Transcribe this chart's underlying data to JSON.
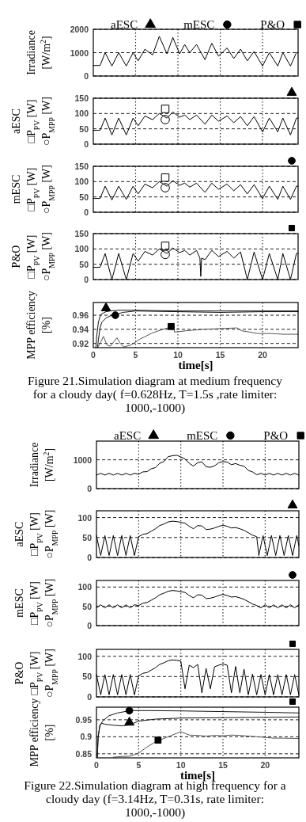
{
  "chart_data": [
    {
      "type": "line",
      "ylabel": "Irradiance\n[W/m$^{2}$]",
      "xlim": [
        0,
        24.2
      ],
      "xticks": [
        0,
        5,
        10,
        15,
        20
      ],
      "ylim": [
        0,
        2000
      ],
      "yticks": [
        0,
        1000,
        2000
      ],
      "grid": true,
      "tick_labels": "y",
      "series": [
        {
          "color": "#000000",
          "x": [
            0,
            0.8,
            1.4,
            2.2,
            3.0,
            3.9,
            4.7,
            5.3,
            6.1,
            7.0,
            7.8,
            8.7,
            9.4,
            10.2,
            10.8,
            11.4,
            12.2,
            13.2,
            14.0,
            14.8,
            15.8,
            16.6,
            17.4,
            18.2,
            19.0,
            20.0,
            20.8,
            21.8,
            22.4,
            23.3,
            24.0,
            24.2
          ],
          "values": [
            450,
            450,
            1000,
            430,
            1000,
            430,
            1000,
            650,
            1150,
            900,
            1700,
            950,
            1650,
            950,
            1350,
            1000,
            1350,
            700,
            1400,
            850,
            1200,
            750,
            1150,
            650,
            1050,
            430,
            1000,
            430,
            1000,
            430,
            1000,
            1000
          ]
        }
      ]
    },
    {
      "type": "line",
      "ylabel": "aESC\n□P$_{PV}$ [W]\n○P$_{MPP}$ [W]",
      "xlim": [
        0,
        24.2
      ],
      "xticks": [
        0,
        5,
        10,
        15,
        20
      ],
      "ylim": [
        0,
        150
      ],
      "yticks": [
        0,
        50,
        100,
        150
      ],
      "grid": true,
      "tick_labels": "y",
      "series": [
        {
          "color": "#000000",
          "x": [
            0,
            0.8,
            1.4,
            2.2,
            3.0,
            3.9,
            4.7,
            5.3,
            6.1,
            7.0,
            7.8,
            8.7,
            9.4,
            10.2,
            10.8,
            11.4,
            12.2,
            13.2,
            14.0,
            14.8,
            15.8,
            16.6,
            17.4,
            18.2,
            19.0,
            20.0,
            20.8,
            21.8,
            22.4,
            23.3,
            24.0,
            24.2
          ],
          "values": [
            45,
            45,
            85,
            30,
            85,
            30,
            85,
            60,
            92,
            80,
            100,
            85,
            105,
            88,
            95,
            80,
            95,
            65,
            95,
            75,
            92,
            70,
            90,
            60,
            90,
            40,
            85,
            40,
            85,
            30,
            85,
            85
          ]
        },
        {
          "type": "scatter",
          "marker": "square",
          "color": "#000000",
          "x": [
            8.5
          ],
          "values": [
            115
          ]
        },
        {
          "type": "scatter",
          "marker": "circle",
          "color": "#000000",
          "x": [
            8.5
          ],
          "values": [
            80
          ]
        }
      ]
    },
    {
      "type": "line",
      "ylabel": "mESC\n□P$_{PV}$ [W]\n○P$_{MPP}$ [W]",
      "xlim": [
        0,
        24.2
      ],
      "xticks": [
        0,
        5,
        10,
        15,
        20
      ],
      "ylim": [
        0,
        150
      ],
      "yticks": [
        0,
        50,
        100,
        150
      ],
      "grid": true,
      "tick_labels": "y",
      "series": [
        {
          "color": "#000000",
          "x": [
            0,
            0.8,
            1.4,
            2.2,
            3.0,
            3.9,
            4.7,
            5.3,
            6.1,
            7.0,
            7.8,
            8.7,
            9.4,
            10.2,
            10.8,
            11.4,
            12.2,
            13.2,
            14.0,
            14.8,
            15.8,
            16.6,
            17.4,
            18.2,
            19.0,
            20.0,
            20.8,
            21.8,
            22.4,
            23.3,
            24.0,
            24.2
          ],
          "values": [
            45,
            45,
            85,
            40,
            85,
            42,
            85,
            60,
            92,
            80,
            100,
            85,
            103,
            88,
            95,
            82,
            95,
            65,
            95,
            75,
            92,
            70,
            90,
            60,
            90,
            45,
            85,
            42,
            85,
            42,
            85,
            85
          ]
        },
        {
          "type": "scatter",
          "marker": "square",
          "color": "#000000",
          "x": [
            8.5
          ],
          "values": [
            113
          ]
        },
        {
          "type": "scatter",
          "marker": "circle",
          "color": "#000000",
          "x": [
            8.5
          ],
          "values": [
            80
          ]
        }
      ]
    },
    {
      "type": "line",
      "ylabel": "P&O\n□P$_{PV}$ [W]\n○P$_{MPP}$ [W]",
      "xlim": [
        0,
        24.2
      ],
      "xticks": [
        0,
        5,
        10,
        15,
        20
      ],
      "ylim": [
        0,
        150
      ],
      "yticks": [
        0,
        50,
        100,
        150
      ],
      "grid": true,
      "tick_labels": "y",
      "series": [
        {
          "color": "#000000",
          "x": [
            0,
            0.8,
            1.4,
            2.2,
            3.0,
            3.9,
            4.7,
            5.3,
            6.1,
            7.0,
            7.8,
            8.7,
            9.4,
            10.2,
            10.8,
            11.4,
            12.2,
            12.6,
            12.7,
            12.8,
            13.2,
            14.0,
            14.8,
            15.8,
            16.6,
            17.4,
            18.2,
            19.0,
            20.0,
            20.8,
            21.8,
            22.4,
            23.3,
            24.0,
            24.2
          ],
          "values": [
            40,
            40,
            85,
            0,
            85,
            0,
            85,
            60,
            92,
            80,
            100,
            85,
            103,
            88,
            95,
            80,
            95,
            70,
            10,
            70,
            65,
            95,
            75,
            92,
            70,
            90,
            0,
            90,
            0,
            85,
            0,
            85,
            0,
            85,
            85
          ]
        },
        {
          "type": "scatter",
          "marker": "square",
          "color": "#000000",
          "x": [
            8.5
          ],
          "values": [
            110
          ]
        },
        {
          "type": "scatter",
          "marker": "circle",
          "color": "#000000",
          "x": [
            8.5
          ],
          "values": [
            82
          ]
        }
      ]
    },
    {
      "type": "line",
      "ylabel": "MPP efficiency\n[%]",
      "xlabel": "time[s]",
      "xlim": [
        0,
        24.2
      ],
      "xticks": [
        0,
        5,
        10,
        15,
        20
      ],
      "ylim": [
        0.914,
        0.978
      ],
      "yticks": [
        0.92,
        0.94,
        0.96
      ],
      "grid": true,
      "legend": "top",
      "annotations": [
        "Figure 21.Simulation diagram at medium frequency for a cloudy day( f=0.628Hz, T=1.5s ,rate limiter: 1000,-1000)"
      ],
      "series": [
        {
          "color": "#111111",
          "x": [
            0.3,
            0.4,
            0.6,
            0.8,
            1.0,
            1.5,
            2.0,
            3.0,
            5,
            10,
            15,
            20,
            24.2
          ],
          "values": [
            0.914,
            0.93,
            0.95,
            0.958,
            0.962,
            0.965,
            0.966,
            0.967,
            0.967,
            0.966,
            0.966,
            0.966,
            0.966
          ]
        },
        {
          "color": "#111111",
          "x": [
            0.5,
            0.6,
            0.8,
            1.0,
            1.5,
            2.0,
            2.6,
            3.5,
            5,
            10,
            15,
            20,
            24.2
          ],
          "values": [
            0.914,
            0.925,
            0.942,
            0.95,
            0.956,
            0.959,
            0.961,
            0.964,
            0.966,
            0.965,
            0.964,
            0.965,
            0.965
          ]
        },
        {
          "color": "#555555",
          "x": [
            0.5,
            0.8,
            1.2,
            1.6,
            2.0,
            2.4,
            2.8,
            3.2,
            3.6,
            4.5,
            5.5,
            7,
            8.5,
            9.5,
            9.6,
            11,
            12,
            13,
            15,
            17,
            17.5,
            18.5,
            19.5,
            21,
            22.5,
            24.2
          ],
          "values": [
            0.914,
            0.92,
            0.93,
            0.918,
            0.916,
            0.922,
            0.928,
            0.92,
            0.915,
            0.918,
            0.926,
            0.935,
            0.941,
            0.944,
            0.936,
            0.938,
            0.939,
            0.94,
            0.941,
            0.942,
            0.938,
            0.936,
            0.934,
            0.934,
            0.933,
            0.933
          ]
        },
        {
          "type": "scatter",
          "name": "aESC",
          "marker": "triangle",
          "color": "#000000",
          "x": [
            1.5
          ],
          "values": [
            0.97
          ]
        },
        {
          "type": "scatter",
          "name": "mESC",
          "marker": "circle",
          "color": "#000000",
          "x": [
            2.6
          ],
          "values": [
            0.96
          ]
        },
        {
          "type": "scatter",
          "name": "P&O",
          "marker": "square",
          "color": "#000000",
          "x": [
            9.2
          ],
          "values": [
            0.944
          ]
        }
      ]
    },
    {
      "type": "line",
      "ylabel": "Irradiance\n[W/m$^{2}$]",
      "xlim": [
        0,
        24
      ],
      "xticks": [
        0,
        5,
        10,
        15,
        20
      ],
      "ylim": [
        0,
        1650
      ],
      "yticks": [
        0,
        1000
      ],
      "grid": true,
      "tick_labels": "y",
      "series": [
        {
          "color": "#000000",
          "x": [
            0,
            0.5,
            1,
            1.5,
            2,
            2.5,
            3,
            3.5,
            4,
            4.5,
            5,
            5.5,
            6,
            6.5,
            7,
            7.5,
            8,
            8.5,
            9,
            9.5,
            10,
            10.5,
            11,
            11.5,
            12,
            12.5,
            13,
            13.5,
            14,
            14.5,
            15,
            15.5,
            16,
            16.5,
            17,
            17.5,
            18,
            18.5,
            19,
            19.5,
            20,
            20.5,
            21,
            21.5,
            22,
            22.5,
            23,
            23.5,
            24
          ],
          "values": [
            470,
            530,
            470,
            530,
            470,
            530,
            470,
            530,
            470,
            530,
            500,
            580,
            590,
            690,
            730,
            880,
            940,
            1110,
            1140,
            1160,
            1100,
            1030,
            880,
            780,
            900,
            930,
            760,
            740,
            790,
            900,
            940,
            920,
            830,
            870,
            810,
            780,
            630,
            580,
            480,
            530,
            470,
            530,
            470,
            530,
            470,
            530,
            470,
            530,
            470
          ]
        }
      ]
    },
    {
      "type": "line",
      "ylabel": "aESC\n□P$_{PV}$ [W]\n○P$_{MPP}$ [W]",
      "xlim": [
        0,
        24
      ],
      "xticks": [
        0,
        5,
        10,
        15,
        20
      ],
      "ylim": [
        0,
        117
      ],
      "yticks": [
        0,
        50,
        100
      ],
      "grid": true,
      "tick_labels": "y",
      "series": [
        {
          "color": "#000000",
          "x": [
            0,
            0.5,
            1,
            1.5,
            2,
            2.5,
            3,
            3.5,
            4,
            4.5,
            5,
            5.5,
            6,
            6.5,
            7,
            7.5,
            8,
            8.5,
            9,
            9.5,
            10,
            10.5,
            11,
            11.5,
            12,
            12.5,
            13,
            13.5,
            14,
            14.5,
            15,
            15.5,
            16,
            16.5,
            17,
            17.5,
            18,
            18.5,
            19,
            19.25,
            19.75,
            20.25,
            20.75,
            21.25,
            21.75,
            22.25,
            22.75,
            23.25,
            23.75,
            24
          ],
          "values": [
            55,
            5,
            55,
            5,
            55,
            5,
            55,
            5,
            55,
            5,
            52,
            58,
            60,
            66,
            72,
            80,
            84,
            89,
            91,
            90,
            88,
            86,
            78,
            72,
            80,
            79,
            70,
            71,
            74,
            78,
            81,
            78,
            74,
            75,
            72,
            68,
            62,
            56,
            52,
            5,
            55,
            5,
            55,
            5,
            55,
            5,
            55,
            5,
            55,
            30
          ]
        }
      ]
    },
    {
      "type": "line",
      "ylabel": "mESC\n□P$_{PV}$ [W]\n○P$_{MPP}$ [W]",
      "xlim": [
        0,
        24
      ],
      "xticks": [
        0,
        5,
        10,
        15,
        20
      ],
      "ylim": [
        0,
        117
      ],
      "yticks": [
        0,
        50,
        100
      ],
      "grid": true,
      "tick_labels": "y",
      "series": [
        {
          "color": "#000000",
          "x": [
            0,
            0.5,
            1,
            1.5,
            2,
            2.5,
            3,
            3.5,
            4,
            4.5,
            5,
            5.5,
            6,
            6.5,
            7,
            7.5,
            8,
            8.5,
            9,
            9.5,
            10,
            10.5,
            11,
            11.5,
            12,
            12.5,
            13,
            13.5,
            14,
            14.5,
            15,
            15.5,
            16,
            16.5,
            17,
            17.5,
            18,
            18.5,
            19,
            19.5,
            20,
            20.5,
            21,
            21.5,
            22,
            22.5,
            23,
            23.5,
            24
          ],
          "values": [
            46,
            54,
            46,
            54,
            46,
            54,
            46,
            54,
            46,
            54,
            52,
            58,
            60,
            66,
            72,
            80,
            84,
            89,
            91,
            90,
            88,
            86,
            78,
            72,
            80,
            79,
            70,
            71,
            74,
            78,
            81,
            78,
            74,
            75,
            72,
            68,
            62,
            56,
            52,
            46,
            54,
            46,
            54,
            46,
            54,
            46,
            54,
            46,
            54
          ]
        }
      ]
    },
    {
      "type": "line",
      "ylabel": "P&O\n□P$_{PV}$ [W]\n○P$_{MPP}$ [W]",
      "xlim": [
        0,
        24
      ],
      "xticks": [
        0,
        5,
        10,
        15,
        20
      ],
      "ylim": [
        0,
        117
      ],
      "yticks": [
        0,
        50,
        100
      ],
      "grid": true,
      "tick_labels": "y",
      "series": [
        {
          "color": "#000000",
          "x": [
            0,
            0.5,
            1,
            1.5,
            2,
            2.5,
            3,
            3.5,
            4,
            4.5,
            5,
            5.5,
            6,
            6.5,
            7,
            7.5,
            8,
            8.5,
            9,
            9.5,
            10,
            10.5,
            11,
            11.5,
            12,
            12.5,
            13,
            13.5,
            14,
            14.5,
            15,
            15.5,
            16,
            16.5,
            17,
            17.5,
            18,
            18.5,
            19,
            19.5,
            20,
            20.5,
            21,
            21.5,
            22,
            22.5,
            23,
            23.5,
            24
          ],
          "values": [
            55,
            5,
            55,
            5,
            55,
            5,
            55,
            5,
            55,
            5,
            52,
            58,
            60,
            66,
            72,
            80,
            84,
            89,
            91,
            90,
            88,
            20,
            78,
            72,
            80,
            10,
            70,
            20,
            74,
            78,
            81,
            78,
            10,
            75,
            10,
            68,
            5,
            56,
            5,
            55,
            5,
            55,
            5,
            55,
            5,
            55,
            5,
            55,
            5
          ]
        }
      ]
    },
    {
      "type": "line",
      "ylabel": "MPP efficiency\n[%]",
      "xlabel": "time[s]",
      "xlim": [
        0,
        24
      ],
      "xticks": [
        0,
        5,
        10,
        15,
        20
      ],
      "ylim": [
        0.838,
        0.987
      ],
      "yticks": [
        0.85,
        0.9,
        0.95
      ],
      "grid": true,
      "legend": "top",
      "annotations": [
        "Figure 22.Simulation diagram at high frequency for a cloudy day (f=3.14Hz, T=0.31s, rate limiter: 1000,-1000)"
      ],
      "series": [
        {
          "color": "#111111",
          "x": [
            0.1,
            0.2,
            0.4,
            0.6,
            1,
            2,
            3,
            3.9,
            5,
            7,
            10,
            15,
            20,
            24
          ],
          "values": [
            0.84,
            0.9,
            0.935,
            0.94,
            0.937,
            0.934,
            0.932,
            0.935,
            0.946,
            0.952,
            0.955,
            0.956,
            0.957,
            0.958
          ]
        },
        {
          "color": "#111111",
          "x": [
            0.1,
            0.2,
            0.4,
            0.7,
            1,
            1.5,
            2.5,
            4,
            6,
            10,
            15,
            20,
            24
          ],
          "values": [
            0.84,
            0.9,
            0.93,
            0.945,
            0.952,
            0.962,
            0.97,
            0.977,
            0.977,
            0.976,
            0.974,
            0.972,
            0.97
          ]
        },
        {
          "color": "#555555",
          "x": [
            2,
            3,
            4,
            5,
            6,
            7,
            7.5,
            8.5,
            9.5,
            10,
            10.5,
            11,
            12,
            13,
            14,
            15,
            16,
            17,
            18,
            19,
            20,
            21,
            22,
            24
          ],
          "values": [
            0.84,
            0.842,
            0.843,
            0.852,
            0.87,
            0.885,
            0.89,
            0.9,
            0.91,
            0.915,
            0.91,
            0.905,
            0.904,
            0.902,
            0.904,
            0.903,
            0.905,
            0.904,
            0.902,
            0.9,
            0.898,
            0.896,
            0.896,
            0.895
          ]
        },
        {
          "type": "scatter",
          "name": "aESC",
          "marker": "triangle",
          "color": "#000000",
          "x": [
            3.9
          ],
          "values": [
            0.942
          ]
        },
        {
          "type": "scatter",
          "name": "mESC",
          "marker": "circle",
          "color": "#000000",
          "x": [
            3.9
          ],
          "values": [
            0.977
          ]
        },
        {
          "type": "scatter",
          "name": "P&O",
          "marker": "square",
          "color": "#000000",
          "x": [
            7.3
          ],
          "values": [
            0.89
          ]
        }
      ]
    }
  ]
}
